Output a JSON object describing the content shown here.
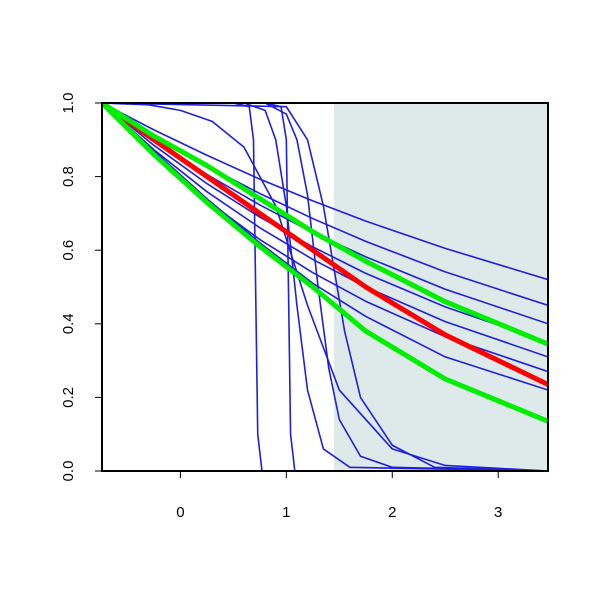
{
  "chart_data": {
    "type": "line",
    "xlim": [
      -0.74,
      3.47
    ],
    "ylim": [
      0,
      1
    ],
    "xticks": [
      0,
      1,
      2,
      3
    ],
    "yticks": [
      {
        "value": 0,
        "label": "0.0"
      },
      {
        "value": 0.2,
        "label": "0.2"
      },
      {
        "value": 0.4,
        "label": "0.4"
      },
      {
        "value": 0.6,
        "label": "0.6"
      },
      {
        "value": 0.8,
        "label": "0.8"
      },
      {
        "value": 1,
        "label": "1.0"
      }
    ],
    "shade_x": [
      1.45,
      3.47
    ],
    "shade_color": "#deeaea",
    "series": [
      {
        "color": "#1f1fdd",
        "width": 1.6,
        "x": [
          -0.74,
          -0.25,
          0.25,
          0.75,
          1.25,
          1.75,
          2.5,
          3.47
        ],
        "values": [
          1,
          0.927,
          0.858,
          0.793,
          0.734,
          0.679,
          0.605,
          0.52
        ]
      },
      {
        "color": "#1f1fdd",
        "width": 1.6,
        "x": [
          -0.74,
          -0.25,
          0.25,
          0.75,
          1.25,
          1.75,
          2.5,
          3.47
        ],
        "values": [
          1,
          0.911,
          0.829,
          0.754,
          0.686,
          0.624,
          0.541,
          0.45
        ]
      },
      {
        "color": "#1f1fdd",
        "width": 1.6,
        "x": [
          -0.74,
          -0.25,
          0.25,
          0.75,
          1.25,
          1.75,
          2.5,
          3.47
        ],
        "values": [
          1,
          0.899,
          0.806,
          0.723,
          0.648,
          0.582,
          0.494,
          0.4
        ]
      },
      {
        "color": "#1f1fdd",
        "width": 1.6,
        "x": [
          -0.74,
          -0.25,
          0.25,
          0.75,
          1.25,
          1.75,
          2.5,
          3.47
        ],
        "values": [
          1,
          0.885,
          0.781,
          0.69,
          0.609,
          0.537,
          0.446,
          0.35
        ]
      },
      {
        "color": "#1f1fdd",
        "width": 1.6,
        "x": [
          -0.74,
          -0.25,
          0.25,
          0.75,
          1.25,
          1.75,
          2.5,
          3.47
        ],
        "values": [
          1,
          0.873,
          0.759,
          0.661,
          0.575,
          0.5,
          0.406,
          0.31
        ]
      },
      {
        "color": "#1f1fdd",
        "width": 1.6,
        "x": [
          -0.74,
          -0.25,
          0.25,
          0.75,
          1.25,
          1.75,
          2.5,
          3.47
        ],
        "values": [
          1,
          0.859,
          0.735,
          0.629,
          0.539,
          0.461,
          0.365,
          0.27
        ]
      },
      {
        "color": "#1f1fdd",
        "width": 1.6,
        "x": [
          -0.74,
          -0.25,
          0.25,
          0.75,
          1.25,
          1.75,
          2.5,
          3.47
        ],
        "values": [
          1,
          0.87,
          0.74,
          0.62,
          0.51,
          0.42,
          0.31,
          0.22
        ]
      },
      {
        "color": "#1f1fdd",
        "width": 1.6,
        "x": [
          -0.74,
          0.5,
          0.65,
          0.69,
          0.71,
          0.73,
          0.77,
          3.47
        ],
        "values": [
          1,
          1,
          0.99,
          0.9,
          0.5,
          0.1,
          0,
          0
        ]
      },
      {
        "color": "#1f1fdd",
        "width": 1.6,
        "x": [
          -0.74,
          0.8,
          0.95,
          1.0,
          1.02,
          1.04,
          1.08,
          3.47
        ],
        "values": [
          1,
          1,
          0.99,
          0.9,
          0.5,
          0.1,
          0,
          0
        ]
      },
      {
        "color": "#1f1fdd",
        "width": 1.6,
        "x": [
          -0.74,
          0.6,
          0.8,
          0.9,
          1.0,
          1.1,
          1.2,
          1.35,
          1.6,
          3.47
        ],
        "values": [
          1,
          1,
          0.98,
          0.9,
          0.72,
          0.45,
          0.22,
          0.06,
          0.01,
          0
        ]
      },
      {
        "color": "#1f1fdd",
        "width": 1.6,
        "x": [
          -0.74,
          0.8,
          1.0,
          1.1,
          1.2,
          1.3,
          1.4,
          1.5,
          1.7,
          2.0,
          3.47
        ],
        "values": [
          1,
          1,
          0.97,
          0.9,
          0.75,
          0.5,
          0.28,
          0.14,
          0.04,
          0.01,
          0
        ]
      },
      {
        "color": "#1f1fdd",
        "width": 1.6,
        "x": [
          -0.74,
          -0.3,
          0,
          0.3,
          0.6,
          0.9,
          1.2,
          1.5,
          2,
          2.5,
          3.47
        ],
        "values": [
          1,
          0.995,
          0.98,
          0.95,
          0.88,
          0.72,
          0.45,
          0.22,
          0.06,
          0.015,
          0
        ]
      },
      {
        "color": "#1f1fdd",
        "width": 1.6,
        "x": [
          -0.74,
          1.0,
          1.2,
          1.35,
          1.45,
          1.55,
          1.7,
          2.0,
          2.4,
          3.47
        ],
        "values": [
          1,
          0.99,
          0.9,
          0.72,
          0.55,
          0.38,
          0.2,
          0.07,
          0.01,
          0
        ]
      },
      {
        "color": "#ff0000",
        "width": 5,
        "x": [
          -0.74,
          -0.25,
          0.25,
          0.75,
          1.25,
          1.75,
          2.5,
          3.47
        ],
        "values": [
          1,
          0.9,
          0.8,
          0.7,
          0.6,
          0.5,
          0.37,
          0.235
        ]
      },
      {
        "color": "#00ee00",
        "width": 5,
        "x": [
          -0.74,
          -0.25,
          0.25,
          0.75,
          1.25,
          1.75,
          2.5,
          3.47
        ],
        "values": [
          1,
          0.91,
          0.83,
          0.74,
          0.65,
          0.57,
          0.46,
          0.345
        ]
      },
      {
        "color": "#00ee00",
        "width": 5,
        "x": [
          -0.74,
          -0.25,
          0.25,
          0.75,
          1.25,
          1.75,
          2.5,
          3.47
        ],
        "values": [
          1,
          0.86,
          0.73,
          0.61,
          0.5,
          0.38,
          0.25,
          0.135
        ]
      }
    ]
  }
}
